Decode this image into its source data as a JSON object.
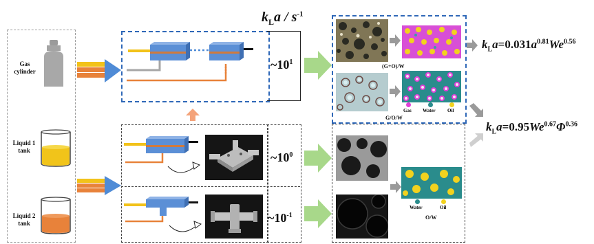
{
  "header": {
    "kla_unit": "k",
    "kla_sub": "L",
    "kla_rest": "a / s",
    "kla_exp": "-1"
  },
  "sources": {
    "gas": {
      "label_line1": "Gas",
      "label_line2": "cylinder"
    },
    "liquid1": {
      "label_line1": "Liquid 1",
      "label_line2": "tank"
    },
    "liquid2": {
      "label_line1": "Liquid 2",
      "label_line2": "tank"
    }
  },
  "magnitudes": {
    "top": {
      "base": "~10",
      "exp": "1"
    },
    "mid": {
      "base": "~10",
      "exp": "0"
    },
    "bot": {
      "base": "~10",
      "exp": "-1"
    }
  },
  "phase_labels": {
    "gow_combined": "(G+O)/W",
    "gow_nested": "G/O/W",
    "ow": "O/W"
  },
  "legend_top": {
    "gas": "Gas",
    "water": "Water",
    "oil": "Oil"
  },
  "legend_bottom": {
    "water": "Water",
    "oil": "Oil"
  },
  "equations": {
    "eq1": {
      "k": "k",
      "L": "L",
      "a": "a",
      "rest": "=0.031",
      "a2": "a",
      "exp1": "0.81",
      "we": "We",
      "exp2": "0.56"
    },
    "eq2": {
      "k": "k",
      "L": "L",
      "a": "a",
      "rest": "=0.95",
      "we": "We",
      "exp1": "0.67",
      "phi": "Φ",
      "exp2": "0.36"
    }
  },
  "colors": {
    "gas": "#e040d8",
    "water": "#2a8c8c",
    "oil": "#f2d21e",
    "arrow_green": "#a8d88a",
    "chip_blue": "#5b8fd6",
    "frame_blue": "#2f68b8",
    "tube_orange": "#e8823a",
    "tube_yellow": "#f2c21a"
  }
}
